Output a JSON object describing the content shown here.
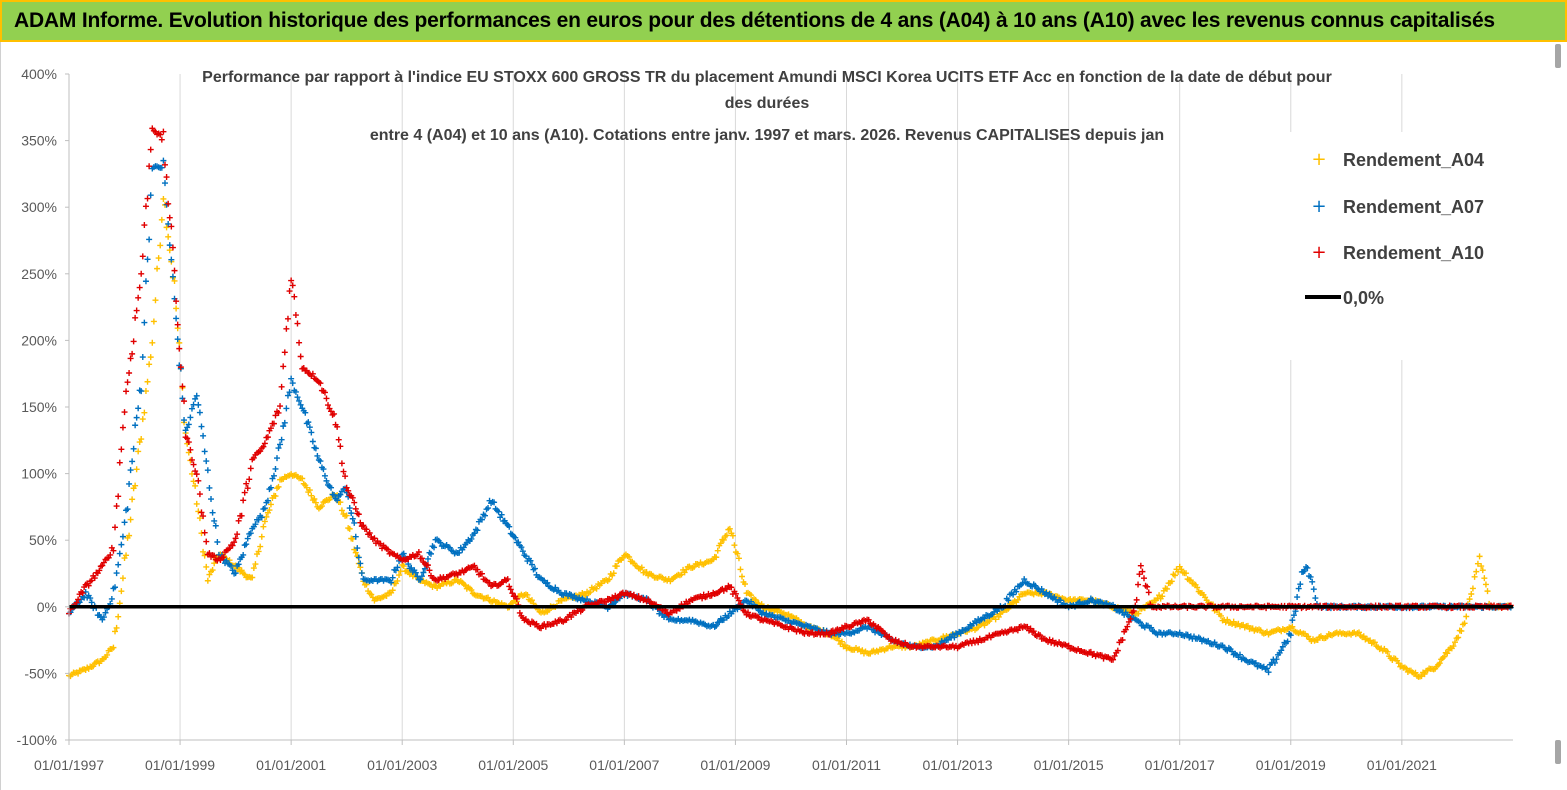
{
  "header": {
    "title": "ADAM Informe. Evolution historique des performances en euros pour des détentions de 4 ans (A04) à 10 ans (A10) avec les revenus connus capitalisés"
  },
  "chart_data": {
    "type": "scatter",
    "title_lines": [
      "Performance par rapport à l'indice EU STOXX 600 GROSS TR  du placement Amundi MSCI Korea UCITS ETF Acc en fonction de la date de début pour",
      "des durées",
      "entre 4 (A04) et 10 ans (A10). Cotations entre janv. 1997 et mars. 2026. Revenus CAPITALISES depuis jan"
    ],
    "x_range": [
      "01/01/1997",
      "31/12/2022"
    ],
    "x_ticks": [
      "01/01/1997",
      "01/01/1999",
      "01/01/2001",
      "01/01/2003",
      "01/01/2005",
      "01/01/2007",
      "01/01/2009",
      "01/01/2011",
      "01/01/2013",
      "01/01/2015",
      "01/01/2017",
      "01/01/2019",
      "01/01/2021"
    ],
    "y_range": [
      -100,
      400
    ],
    "y_ticks": [
      "400%",
      "350%",
      "300%",
      "250%",
      "200%",
      "150%",
      "100%",
      "50%",
      "0%",
      "-50%",
      "-100%"
    ],
    "y_tick_values": [
      400,
      350,
      300,
      250,
      200,
      150,
      100,
      50,
      0,
      -50,
      -100
    ],
    "legend_position": "right",
    "grid": "vertical",
    "series": [
      {
        "name": "Rendement_A04",
        "color": "#ffc000",
        "x": [
          1997.0,
          1997.3,
          1997.6,
          1997.8,
          1998.0,
          1998.3,
          1998.5,
          1998.7,
          1998.9,
          1999.1,
          1999.3,
          1999.5,
          1999.7,
          2000.0,
          2000.3,
          2000.5,
          2000.8,
          2001.0,
          2001.2,
          2001.5,
          2001.8,
          2002.0,
          2002.3,
          2002.5,
          2002.8,
          2003.0,
          2003.3,
          2003.6,
          2004.0,
          2004.3,
          2004.6,
          2004.9,
          2005.2,
          2005.5,
          2005.9,
          2006.3,
          2006.7,
          2007.0,
          2007.4,
          2007.8,
          2008.2,
          2008.6,
          2008.9,
          2009.2,
          2009.5,
          2009.9,
          2010.3,
          2010.7,
          2011.0,
          2011.4,
          2011.8,
          2012.2,
          2012.6,
          2013.0,
          2013.4,
          2013.8,
          2014.2,
          2014.6,
          2015.0,
          2015.4,
          2015.8,
          2016.2,
          2016.6,
          2017.0,
          2017.4,
          2017.8,
          2018.2,
          2018.6,
          2019.0,
          2019.4,
          2019.8,
          2020.2,
          2020.6,
          2021.0,
          2021.3,
          2021.6,
          2021.9,
          2022.1,
          2022.25,
          2022.4,
          2022.6,
          2022.8,
          2022.99
        ],
        "y": [
          -52,
          -47,
          -40,
          -30,
          30,
          130,
          200,
          310,
          240,
          130,
          80,
          20,
          40,
          30,
          20,
          60,
          95,
          100,
          95,
          75,
          85,
          65,
          20,
          5,
          10,
          30,
          20,
          15,
          20,
          10,
          5,
          0,
          10,
          -5,
          5,
          10,
          20,
          40,
          25,
          20,
          30,
          35,
          60,
          10,
          0,
          -5,
          -15,
          -20,
          -30,
          -35,
          -30,
          -30,
          -25,
          -20,
          -15,
          -5,
          10,
          10,
          5,
          5,
          0,
          -5,
          5,
          30,
          10,
          -10,
          -15,
          -20,
          -15,
          -25,
          -20,
          -20,
          -30,
          -45,
          -52,
          -45,
          -30,
          -15,
          10,
          35,
          0,
          0,
          0
        ]
      },
      {
        "name": "Rendement_A07",
        "color": "#0070c0",
        "x": [
          1997.0,
          1997.3,
          1997.6,
          1997.8,
          1998.0,
          1998.3,
          1998.5,
          1998.7,
          1998.9,
          1999.1,
          1999.3,
          1999.5,
          1999.7,
          2000.0,
          2000.3,
          2000.5,
          2000.8,
          2001.0,
          2001.2,
          2001.5,
          2001.8,
          2002.0,
          2002.3,
          2002.5,
          2002.8,
          2003.0,
          2003.3,
          2003.6,
          2004.0,
          2004.3,
          2004.6,
          2004.9,
          2005.2,
          2005.5,
          2005.9,
          2006.3,
          2006.7,
          2007.0,
          2007.4,
          2007.8,
          2008.2,
          2008.6,
          2008.9,
          2009.2,
          2009.5,
          2009.9,
          2010.3,
          2010.7,
          2011.0,
          2011.4,
          2011.8,
          2012.2,
          2012.6,
          2013.0,
          2013.4,
          2013.8,
          2014.2,
          2014.6,
          2015.0,
          2015.4,
          2015.8,
          2016.2,
          2016.6,
          2017.0,
          2017.4,
          2017.8,
          2018.2,
          2018.6,
          2019.0,
          2019.2,
          2019.3,
          2019.5,
          2020.0,
          2021.0,
          2022.0,
          2022.99
        ],
        "y": [
          -5,
          10,
          -10,
          10,
          60,
          170,
          330,
          330,
          230,
          130,
          160,
          100,
          40,
          25,
          60,
          70,
          120,
          170,
          150,
          110,
          80,
          90,
          20,
          20,
          20,
          40,
          20,
          50,
          40,
          55,
          80,
          60,
          40,
          20,
          10,
          5,
          0,
          10,
          5,
          -10,
          -10,
          -15,
          -5,
          5,
          -5,
          -10,
          -15,
          -20,
          -20,
          -15,
          -25,
          -30,
          -30,
          -20,
          -10,
          0,
          20,
          10,
          0,
          5,
          0,
          -10,
          -20,
          -20,
          -25,
          -30,
          -40,
          -48,
          -20,
          25,
          30,
          0,
          0,
          0,
          0,
          0
        ]
      },
      {
        "name": "Rendement_A10",
        "color": "#e00000",
        "x": [
          1997.0,
          1997.3,
          1997.6,
          1997.8,
          1998.0,
          1998.3,
          1998.5,
          1998.7,
          1998.9,
          1999.1,
          1999.3,
          1999.5,
          1999.7,
          2000.0,
          2000.3,
          2000.5,
          2000.8,
          2001.0,
          2001.2,
          2001.5,
          2001.8,
          2002.0,
          2002.3,
          2002.5,
          2002.8,
          2003.0,
          2003.3,
          2003.6,
          2004.0,
          2004.3,
          2004.6,
          2004.9,
          2005.2,
          2005.5,
          2005.9,
          2006.3,
          2006.7,
          2007.0,
          2007.4,
          2007.8,
          2008.2,
          2008.6,
          2008.9,
          2009.2,
          2009.5,
          2009.9,
          2010.3,
          2010.7,
          2011.0,
          2011.4,
          2011.8,
          2012.2,
          2012.6,
          2013.0,
          2013.4,
          2013.8,
          2014.2,
          2014.6,
          2015.0,
          2015.4,
          2015.8,
          2016.0,
          2016.2,
          2016.3,
          2016.5,
          2017.0,
          2018.0,
          2019.0,
          2020.0,
          2021.0,
          2022.0,
          2022.99
        ],
        "y": [
          -5,
          15,
          30,
          45,
          150,
          250,
          360,
          350,
          250,
          130,
          100,
          40,
          35,
          50,
          110,
          120,
          150,
          250,
          180,
          170,
          140,
          90,
          60,
          50,
          40,
          35,
          40,
          20,
          25,
          30,
          15,
          20,
          -10,
          -15,
          -10,
          0,
          5,
          10,
          5,
          -5,
          5,
          10,
          15,
          -5,
          -10,
          -15,
          -20,
          -20,
          -15,
          -10,
          -25,
          -30,
          -30,
          -30,
          -25,
          -20,
          -15,
          -25,
          -30,
          -35,
          -40,
          -20,
          0,
          30,
          0,
          0,
          0,
          0,
          0,
          0,
          0,
          0
        ]
      }
    ],
    "reference_line": {
      "name": "0,0%",
      "color": "#000000",
      "value": 0
    }
  }
}
